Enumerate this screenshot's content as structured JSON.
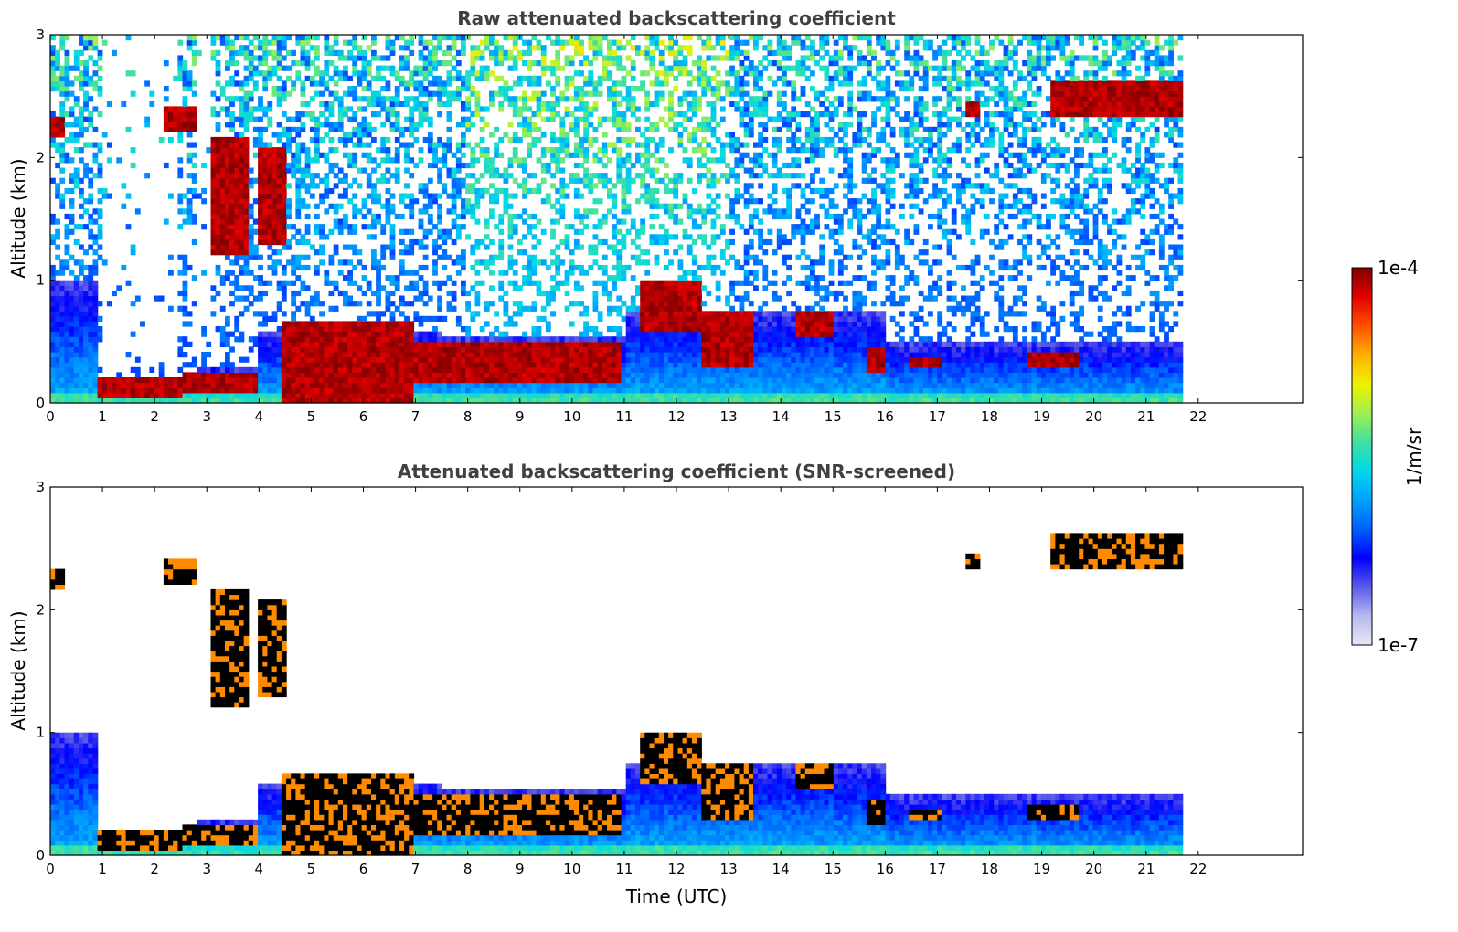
{
  "chart_data": [
    {
      "type": "heatmap",
      "title": "Raw attenuated backscattering coefficient",
      "xlabel": "",
      "ylabel": "Altitude (km)",
      "xlim": [
        0,
        24
      ],
      "ylim": [
        0,
        3
      ],
      "xticks": [
        "0",
        "1",
        "2",
        "3",
        "4",
        "5",
        "6",
        "7",
        "8",
        "9",
        "10",
        "11",
        "12",
        "13",
        "14",
        "15",
        "16",
        "17",
        "18",
        "19",
        "20",
        "21",
        "22"
      ],
      "yticks": [
        "0",
        "1",
        "2",
        "3"
      ],
      "data_end_time": 21.7,
      "cloud_layers": [
        {
          "start": 0.0,
          "end": 0.3,
          "base": 2.15,
          "top": 2.35
        },
        {
          "start": 0.9,
          "end": 2.5,
          "base": 0.05,
          "top": 0.2
        },
        {
          "start": 2.2,
          "end": 2.8,
          "base": 2.2,
          "top": 2.4
        },
        {
          "start": 2.5,
          "end": 4.0,
          "base": 0.1,
          "top": 0.25
        },
        {
          "start": 3.1,
          "end": 3.8,
          "base": 1.2,
          "top": 2.15
        },
        {
          "start": 4.0,
          "end": 4.5,
          "base": 1.3,
          "top": 2.1
        },
        {
          "start": 4.4,
          "end": 7.0,
          "base": 0.0,
          "top": 0.65
        },
        {
          "start": 7.0,
          "end": 10.9,
          "base": 0.15,
          "top": 0.5
        },
        {
          "start": 11.3,
          "end": 12.5,
          "base": 0.6,
          "top": 1.0
        },
        {
          "start": 12.5,
          "end": 13.5,
          "base": 0.3,
          "top": 0.75
        },
        {
          "start": 14.3,
          "end": 15.0,
          "base": 0.55,
          "top": 0.75
        },
        {
          "start": 15.6,
          "end": 16.0,
          "base": 0.25,
          "top": 0.45
        },
        {
          "start": 16.5,
          "end": 17.1,
          "base": 0.28,
          "top": 0.38
        },
        {
          "start": 17.5,
          "end": 17.8,
          "base": 2.35,
          "top": 2.45
        },
        {
          "start": 18.7,
          "end": 19.7,
          "base": 0.28,
          "top": 0.4
        },
        {
          "start": 19.2,
          "end": 21.7,
          "base": 2.35,
          "top": 2.62
        }
      ]
    },
    {
      "type": "heatmap",
      "title": "Attenuated backscattering coefficient (SNR-screened)",
      "xlabel": "Time (UTC)",
      "ylabel": "Altitude (km)",
      "xlim": [
        0,
        24
      ],
      "ylim": [
        0,
        3
      ],
      "xticks": [
        "0",
        "1",
        "2",
        "3",
        "4",
        "5",
        "6",
        "7",
        "8",
        "9",
        "10",
        "11",
        "12",
        "13",
        "14",
        "15",
        "16",
        "17",
        "18",
        "19",
        "20",
        "21",
        "22"
      ],
      "yticks": [
        "0",
        "1",
        "2",
        "3"
      ],
      "data_end_time": 21.7
    }
  ],
  "colorbar": {
    "label": "1/m/sr",
    "max_label": "1e-4",
    "min_label": "1e-7",
    "colors": [
      "#e8e8f8",
      "#b8b8f0",
      "#5a5ae8",
      "#0000ff",
      "#0060ff",
      "#00a0ff",
      "#00d8e8",
      "#40e0a0",
      "#a0f050",
      "#f0f000",
      "#ffb000",
      "#ff5000",
      "#e00000",
      "#800000"
    ]
  }
}
